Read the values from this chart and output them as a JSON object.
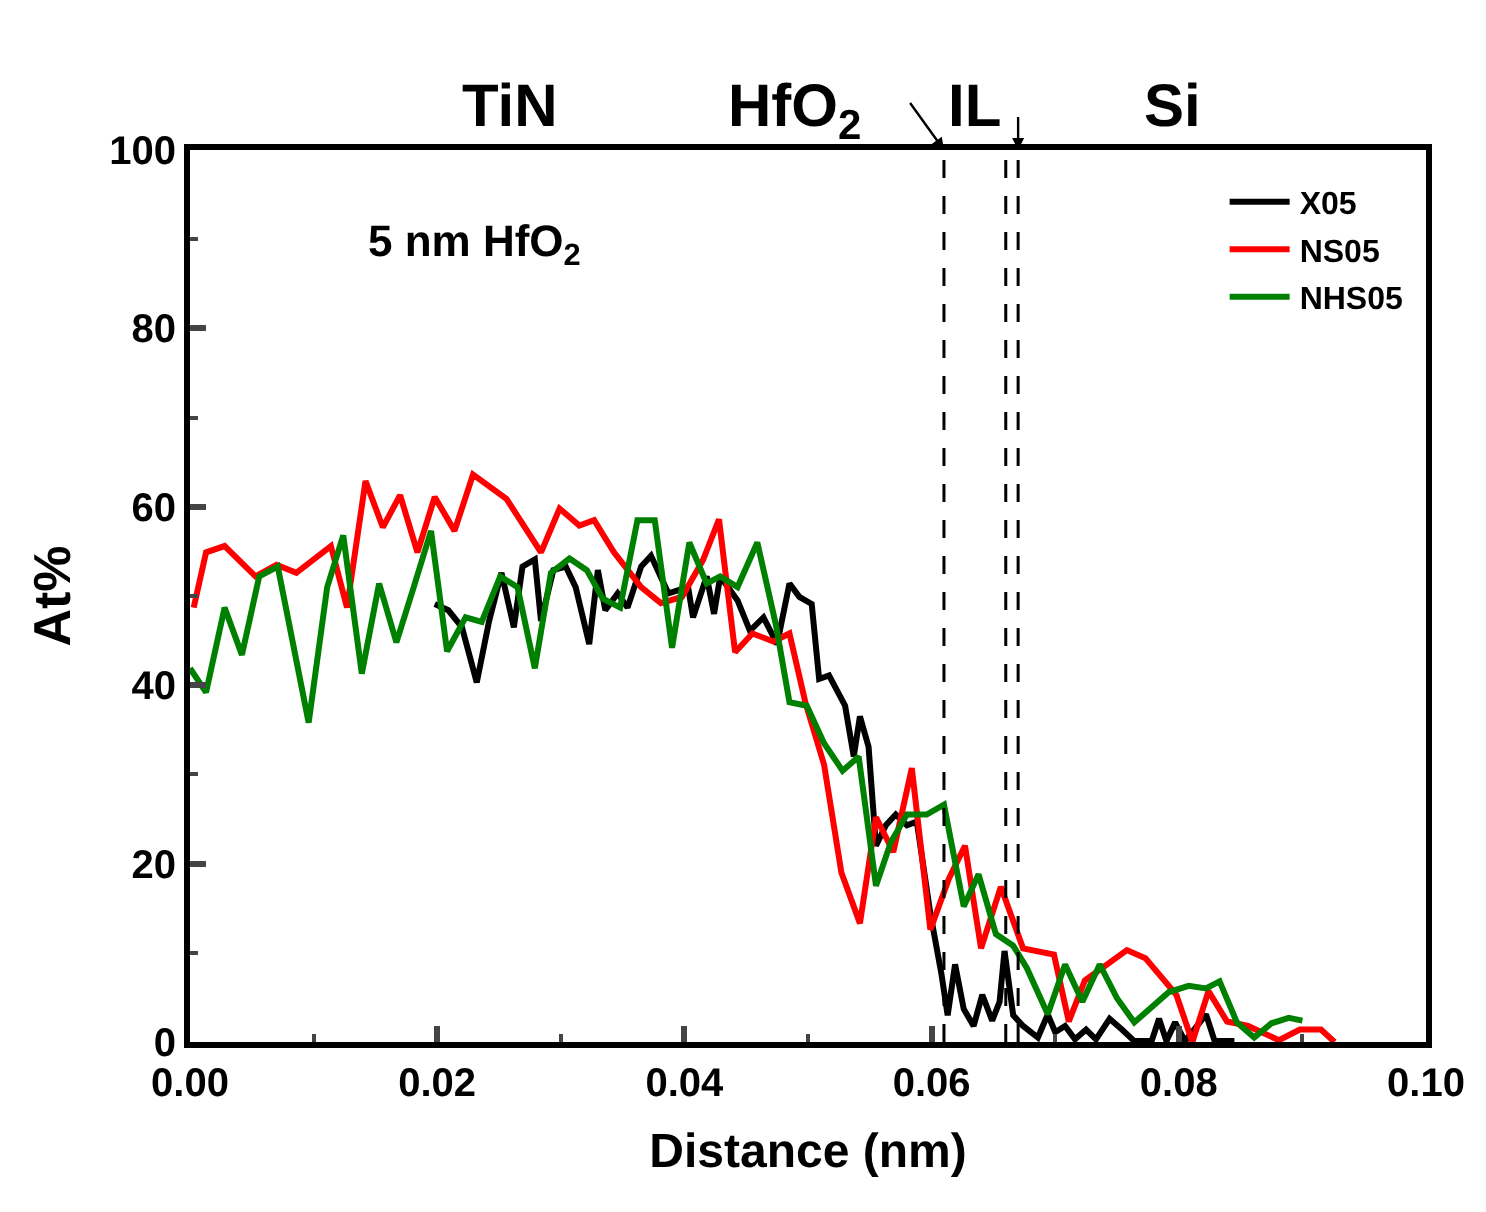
{
  "chart_data": {
    "type": "line",
    "xlabel": "Distance (nm)",
    "ylabel": "At%",
    "annotations": [
      "TiN",
      "HfO$_{2}$",
      "IL",
      "Si",
      "5 nm HfO$_{2}$"
    ],
    "xlim": [
      0,
      0.1
    ],
    "ylim": [
      0,
      100
    ],
    "xticks": [
      {
        "value": 0,
        "label": "0.00"
      },
      {
        "value": 0.02,
        "label": "0.02"
      },
      {
        "value": 0.04,
        "label": "0.04"
      },
      {
        "value": 0.06,
        "label": "0.06"
      },
      {
        "value": 0.08,
        "label": "0.08"
      },
      {
        "value": 0.1,
        "label": "0.10"
      }
    ],
    "yticks": [
      0,
      20,
      40,
      60,
      80,
      100
    ],
    "legend": "top right",
    "marker": "none",
    "line_style": "solid",
    "ref_lines": [
      {
        "axis": "x",
        "value": 0.061,
        "color": "#000000",
        "line_style": "dashed"
      },
      {
        "axis": "x",
        "value": 0.066,
        "color": "#000000",
        "line_style": "dashed"
      },
      {
        "axis": "x",
        "value": 0.067,
        "color": "#000000",
        "line_style": "dashed"
      }
    ],
    "series": [
      {
        "name": "X05",
        "color": "#000000",
        "x": [
          0.0198,
          0.0209,
          0.022,
          0.0232,
          0.0242,
          0.0252,
          0.0262,
          0.0269,
          0.0279,
          0.0284,
          0.0294,
          0.0304,
          0.0312,
          0.0323,
          0.033,
          0.0336,
          0.0346,
          0.0354,
          0.0365,
          0.0373,
          0.0387,
          0.0403,
          0.0407,
          0.0418,
          0.0424,
          0.0429,
          0.0443,
          0.0453,
          0.0464,
          0.0475,
          0.0485,
          0.0493,
          0.0503,
          0.0509,
          0.0517,
          0.053,
          0.0537,
          0.0542,
          0.0549,
          0.0555,
          0.0563,
          0.0571,
          0.058,
          0.0588,
          0.0599,
          0.0608,
          0.0613,
          0.0619,
          0.0626,
          0.0634,
          0.0641,
          0.0649,
          0.0655,
          0.0659,
          0.0666,
          0.0674,
          0.0686,
          0.0694,
          0.07,
          0.0708,
          0.0716,
          0.0725,
          0.0733,
          0.0744,
          0.0754,
          0.0764,
          0.0778,
          0.0784,
          0.079,
          0.0797,
          0.0805,
          0.0817,
          0.0822,
          0.0829,
          0.0845
        ],
        "values": [
          49.1,
          48.4,
          46.5,
          40.3,
          47.2,
          52.6,
          46.5,
          53.3,
          54.1,
          47.2,
          52.9,
          53.3,
          51.0,
          44.6,
          52.9,
          48.4,
          50.3,
          48.7,
          53.3,
          54.5,
          50.3,
          51.0,
          47.6,
          52.2,
          48.0,
          52.2,
          49.5,
          46.1,
          47.6,
          44.6,
          51.4,
          49.9,
          49.1,
          40.7,
          41.1,
          37.7,
          32.0,
          36.5,
          33.1,
          22.0,
          24.3,
          25.5,
          24.3,
          24.7,
          14.4,
          7.6,
          3.0,
          8.7,
          3.7,
          1.8,
          5.3,
          2.4,
          4.5,
          10.2,
          3.0,
          1.8,
          0.5,
          3.1,
          1.1,
          1.8,
          0.3,
          1.4,
          0.3,
          2.6,
          1.4,
          0.1,
          0.1,
          2.6,
          0.1,
          2.2,
          0.1,
          2.2,
          3.1,
          0.1,
          0.1
        ]
      },
      {
        "name": "NS05",
        "color": "#ff0000",
        "x": [
          0.0003,
          0.0013,
          0.0028,
          0.0053,
          0.007,
          0.0086,
          0.0114,
          0.0127,
          0.0142,
          0.0156,
          0.017,
          0.0184,
          0.0198,
          0.0214,
          0.0229,
          0.0256,
          0.0284,
          0.0299,
          0.0315,
          0.0327,
          0.0343,
          0.0365,
          0.0381,
          0.0398,
          0.0415,
          0.0428,
          0.0441,
          0.0455,
          0.0472,
          0.0485,
          0.0498,
          0.0513,
          0.0527,
          0.0542,
          0.0555,
          0.0569,
          0.0584,
          0.0599,
          0.0614,
          0.0627,
          0.064,
          0.0656,
          0.0674,
          0.0699,
          0.0711,
          0.0724,
          0.0758,
          0.0773,
          0.0798,
          0.0811,
          0.0824,
          0.0839,
          0.0856,
          0.0881,
          0.0898,
          0.0915,
          0.0926
        ],
        "values": [
          48.7,
          54.9,
          55.6,
          52.2,
          53.5,
          52.6,
          55.6,
          48.7,
          62.9,
          57.7,
          61.3,
          54.9,
          61.1,
          57.3,
          63.6,
          60.9,
          54.9,
          59.8,
          57.9,
          58.5,
          54.9,
          51.0,
          49.2,
          49.9,
          54.0,
          58.6,
          43.7,
          45.8,
          44.9,
          45.8,
          38.0,
          31.1,
          19.0,
          13.3,
          25.2,
          21.3,
          30.7,
          12.6,
          18.3,
          22.0,
          10.5,
          17.4,
          10.5,
          9.8,
          2.3,
          6.9,
          10.3,
          9.4,
          5.3,
          0,
          5.7,
          2.3,
          1.8,
          0.2,
          1.4,
          1.4,
          0
        ]
      },
      {
        "name": "NHS05",
        "color": "#008000",
        "x": [
          0,
          0.0013,
          0.0028,
          0.0042,
          0.0056,
          0.0071,
          0.0096,
          0.0111,
          0.0124,
          0.0139,
          0.0153,
          0.0167,
          0.0181,
          0.0195,
          0.0208,
          0.0223,
          0.0236,
          0.0251,
          0.0265,
          0.0279,
          0.0292,
          0.0307,
          0.0321,
          0.0334,
          0.0348,
          0.0362,
          0.0376,
          0.039,
          0.0404,
          0.0418,
          0.0429,
          0.0443,
          0.0459,
          0.0474,
          0.0485,
          0.0499,
          0.0513,
          0.0528,
          0.0541,
          0.0555,
          0.0567,
          0.058,
          0.0596,
          0.061,
          0.0626,
          0.0638,
          0.0652,
          0.0666,
          0.0677,
          0.0694,
          0.0708,
          0.0722,
          0.0736,
          0.075,
          0.0764,
          0.0792,
          0.0808,
          0.0822,
          0.0833,
          0.0847,
          0.0861,
          0.0875,
          0.0889,
          0.09
        ],
        "values": [
          41.9,
          39.2,
          48.7,
          43.4,
          52.2,
          53.3,
          35.8,
          51.0,
          56.8,
          41.3,
          51.4,
          44.8,
          51.0,
          57.3,
          43.8,
          47.6,
          47.1,
          52.2,
          51.0,
          41.9,
          52.6,
          54.2,
          52.9,
          49.7,
          48.7,
          58.5,
          58.5,
          44.2,
          56.0,
          51.4,
          52.2,
          51.0,
          56.0,
          46.8,
          38.1,
          37.7,
          33.5,
          30.4,
          32.0,
          17.5,
          22.4,
          25.5,
          25.5,
          26.6,
          15.2,
          18.8,
          12.1,
          10.8,
          8.3,
          3.1,
          8.7,
          4.5,
          8.7,
          4.9,
          2.2,
          5.6,
          6.3,
          6.0,
          6.8,
          2.2,
          0.5,
          2.1,
          2.7,
          2.4
        ]
      }
    ]
  }
}
